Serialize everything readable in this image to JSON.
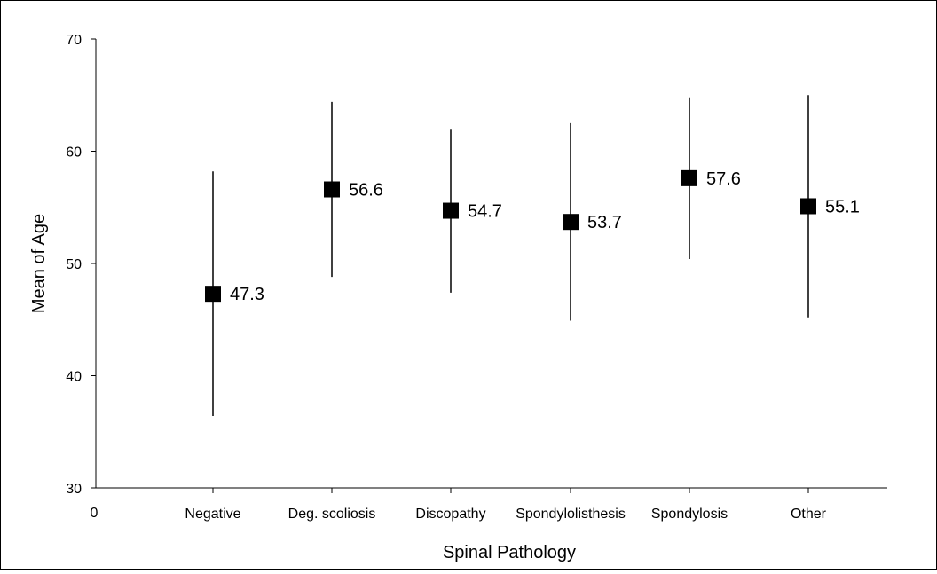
{
  "chart_data": {
    "type": "scatter",
    "subtype": "mean-with-error-bars",
    "title": "",
    "xlabel": "Spinal Pathology",
    "ylabel": "Mean of Age",
    "ylim": [
      30,
      70
    ],
    "yticks": [
      30,
      40,
      50,
      60,
      70
    ],
    "x_origin_label": "0",
    "categories": [
      "Negative",
      "Deg. scoliosis",
      "Discopathy",
      "Spondylolisthesis",
      "Spondylosis",
      "Other"
    ],
    "series": [
      {
        "values": [
          47.3,
          56.6,
          54.7,
          53.7,
          57.6,
          55.1
        ],
        "labels": [
          "47.3",
          "56.6",
          "54.7",
          "53.7",
          "57.6",
          "55.1"
        ],
        "error_low": [
          36.4,
          48.8,
          47.4,
          44.9,
          50.4,
          45.2
        ],
        "error_high": [
          58.2,
          64.4,
          62.0,
          62.5,
          64.8,
          65.0
        ]
      }
    ],
    "marker": "square",
    "marker_color": "#000000",
    "grid": false,
    "legend": "none"
  }
}
